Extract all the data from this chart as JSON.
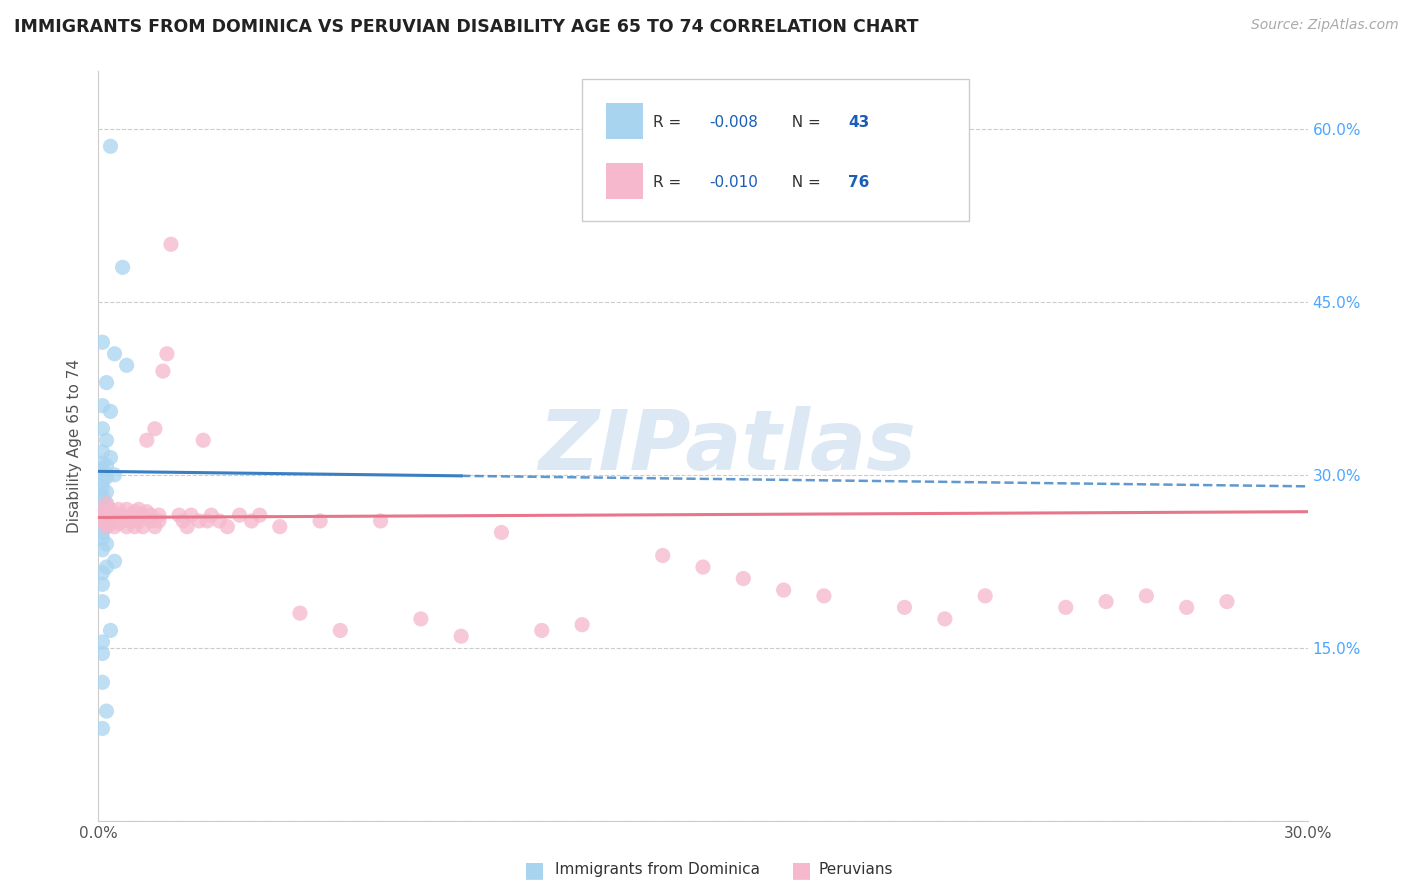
{
  "title": "IMMIGRANTS FROM DOMINICA VS PERUVIAN DISABILITY AGE 65 TO 74 CORRELATION CHART",
  "source": "Source: ZipAtlas.com",
  "ylabel": "Disability Age 65 to 74",
  "xlim": [
    0.0,
    0.3
  ],
  "ylim": [
    0.0,
    0.65
  ],
  "xtick_vals": [
    0.0,
    0.05,
    0.1,
    0.15,
    0.2,
    0.25,
    0.3
  ],
  "xtick_labels": [
    "0.0%",
    "",
    "",
    "",
    "",
    "",
    "30.0%"
  ],
  "ytick_vals": [
    0.0,
    0.15,
    0.3,
    0.45,
    0.6
  ],
  "ytick_labels_right": [
    "15.0%",
    "30.0%",
    "45.0%",
    "60.0%"
  ],
  "legend_R_blue": "-0.008",
  "legend_N_blue": "43",
  "legend_R_pink": "-0.010",
  "legend_N_pink": "76",
  "blue_scatter_color": "#a8d4f0",
  "pink_scatter_color": "#f5b8cc",
  "blue_line_color": "#3a7fc1",
  "pink_line_color": "#e8768a",
  "text_dark": "#222222",
  "text_gray": "#aaaaaa",
  "text_blue": "#4da6ff",
  "legend_text_color": "#333333",
  "legend_value_color": "#1a5eb8",
  "grid_color": "#cccccc",
  "watermark_color": "#dde8f5",
  "blue_line_solid_end": 0.09,
  "blue_line_y_start": 0.303,
  "blue_line_y_end": 0.29,
  "pink_line_y_start": 0.263,
  "pink_line_y_end": 0.268,
  "dominica_x": [
    0.003,
    0.006,
    0.001,
    0.004,
    0.007,
    0.002,
    0.001,
    0.003,
    0.001,
    0.002,
    0.001,
    0.003,
    0.001,
    0.002,
    0.001,
    0.004,
    0.002,
    0.001,
    0.001,
    0.002,
    0.001,
    0.001,
    0.002,
    0.001,
    0.001,
    0.003,
    0.001,
    0.002,
    0.001,
    0.001,
    0.002,
    0.001,
    0.004,
    0.002,
    0.001,
    0.001,
    0.001,
    0.003,
    0.001,
    0.001,
    0.001,
    0.002,
    0.001
  ],
  "dominica_y": [
    0.585,
    0.48,
    0.415,
    0.405,
    0.395,
    0.38,
    0.36,
    0.355,
    0.34,
    0.33,
    0.32,
    0.315,
    0.31,
    0.308,
    0.305,
    0.3,
    0.298,
    0.295,
    0.29,
    0.285,
    0.282,
    0.278,
    0.275,
    0.27,
    0.268,
    0.262,
    0.26,
    0.255,
    0.25,
    0.245,
    0.24,
    0.235,
    0.225,
    0.22,
    0.215,
    0.205,
    0.19,
    0.165,
    0.155,
    0.145,
    0.12,
    0.095,
    0.08
  ],
  "peruvian_x": [
    0.001,
    0.001,
    0.001,
    0.002,
    0.002,
    0.002,
    0.002,
    0.003,
    0.003,
    0.003,
    0.003,
    0.004,
    0.004,
    0.004,
    0.005,
    0.005,
    0.005,
    0.006,
    0.006,
    0.007,
    0.007,
    0.008,
    0.008,
    0.009,
    0.009,
    0.01,
    0.01,
    0.011,
    0.011,
    0.012,
    0.012,
    0.013,
    0.013,
    0.014,
    0.014,
    0.015,
    0.015,
    0.016,
    0.017,
    0.018,
    0.02,
    0.021,
    0.022,
    0.023,
    0.025,
    0.026,
    0.027,
    0.028,
    0.03,
    0.032,
    0.035,
    0.038,
    0.04,
    0.045,
    0.05,
    0.055,
    0.06,
    0.07,
    0.08,
    0.09,
    0.1,
    0.11,
    0.12,
    0.14,
    0.15,
    0.16,
    0.17,
    0.18,
    0.2,
    0.21,
    0.22,
    0.24,
    0.25,
    0.26,
    0.27,
    0.28
  ],
  "peruvian_y": [
    0.26,
    0.265,
    0.27,
    0.255,
    0.262,
    0.268,
    0.275,
    0.258,
    0.265,
    0.26,
    0.27,
    0.255,
    0.265,
    0.26,
    0.258,
    0.27,
    0.265,
    0.26,
    0.263,
    0.255,
    0.27,
    0.26,
    0.265,
    0.255,
    0.268,
    0.26,
    0.27,
    0.255,
    0.265,
    0.268,
    0.33,
    0.26,
    0.265,
    0.255,
    0.34,
    0.26,
    0.265,
    0.39,
    0.405,
    0.5,
    0.265,
    0.26,
    0.255,
    0.265,
    0.26,
    0.33,
    0.26,
    0.265,
    0.26,
    0.255,
    0.265,
    0.26,
    0.265,
    0.255,
    0.18,
    0.26,
    0.165,
    0.26,
    0.175,
    0.16,
    0.25,
    0.165,
    0.17,
    0.23,
    0.22,
    0.21,
    0.2,
    0.195,
    0.185,
    0.175,
    0.195,
    0.185,
    0.19,
    0.195,
    0.185,
    0.19
  ]
}
